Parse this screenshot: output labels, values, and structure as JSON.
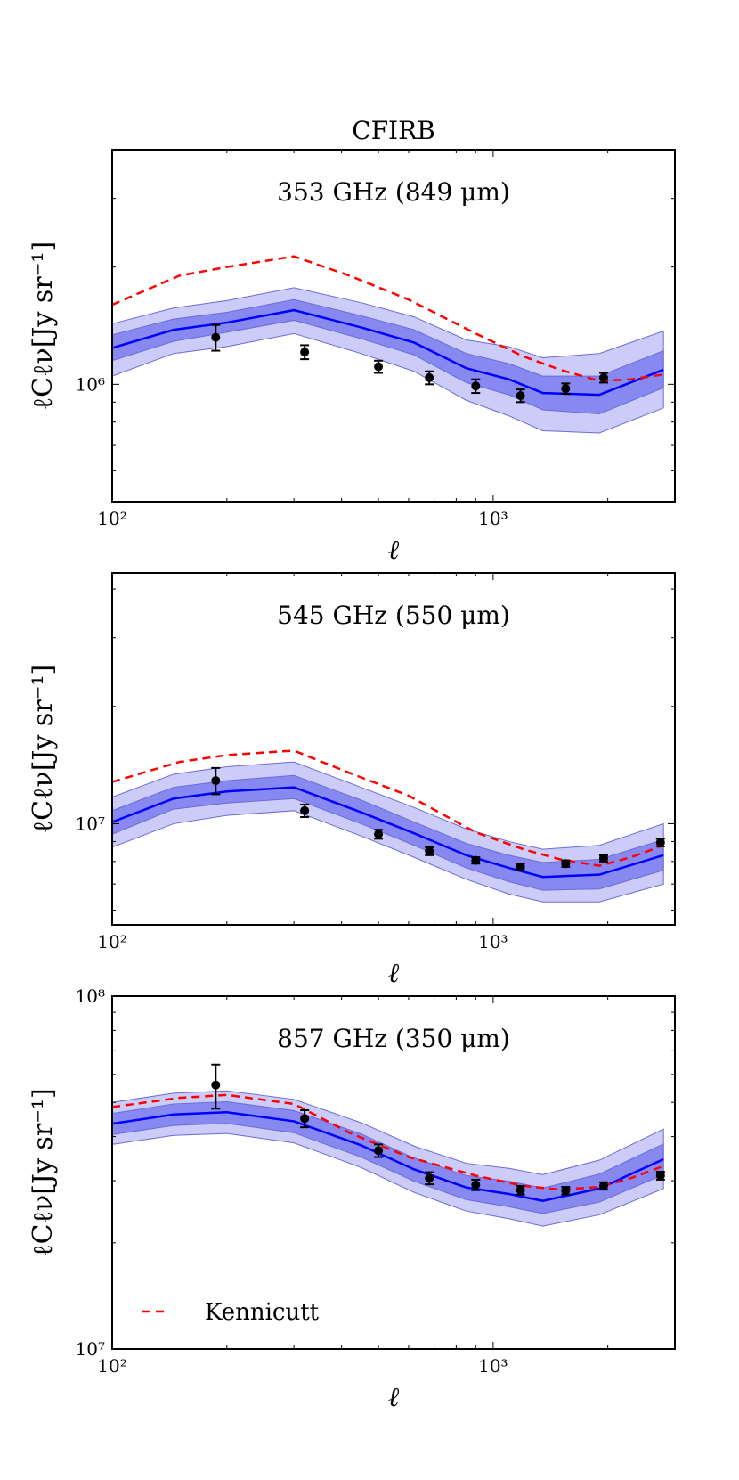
{
  "chart_data": {
    "title": "CFIRB",
    "type": "line",
    "legend": {
      "placement": "bottom-left of bottom panel",
      "entries": [
        {
          "label": "Kennicutt",
          "style": "dashed",
          "color": "#ff0000"
        }
      ]
    },
    "colors": {
      "model_line": "#0000ff",
      "band_inner": "#7b7bf0",
      "band_outer": "#c3c3f7",
      "kennicutt": "#ff0000",
      "data_points": "#000000"
    },
    "xscale": "log",
    "yscale": "log",
    "grid": false,
    "panels": [
      {
        "label": "353 GHz (849 μm)",
        "xlabel": "ℓ",
        "ylabel": "ℓCℓν[Jy sr⁻¹]",
        "xlim": [
          100,
          3000
        ],
        "ylim": [
          500000,
          4000000
        ],
        "xticks": [
          {
            "value": 100,
            "label": "10²"
          },
          {
            "value": 1000,
            "label": "10³"
          }
        ],
        "yticks": [
          {
            "value": 1000000,
            "label": "10⁶"
          }
        ],
        "model": {
          "x": [
            100,
            145,
            200,
            300,
            450,
            620,
            850,
            1100,
            1350,
            1900,
            2800
          ],
          "y": [
            1240000,
            1380000,
            1440000,
            1550000,
            1400000,
            1280000,
            1100000,
            1030000,
            950000,
            940000,
            1090000
          ],
          "inner": [
            [
              1150000,
              1340000
            ],
            [
              1290000,
              1470000
            ],
            [
              1360000,
              1530000
            ],
            [
              1460000,
              1650000
            ],
            [
              1310000,
              1500000
            ],
            [
              1190000,
              1380000
            ],
            [
              1010000,
              1200000
            ],
            [
              940000,
              1130000
            ],
            [
              860000,
              1050000
            ],
            [
              840000,
              1050000
            ],
            [
              980000,
              1220000
            ]
          ],
          "outer": [
            [
              1050000,
              1430000
            ],
            [
              1200000,
              1570000
            ],
            [
              1250000,
              1640000
            ],
            [
              1350000,
              1770000
            ],
            [
              1200000,
              1620000
            ],
            [
              1080000,
              1490000
            ],
            [
              910000,
              1300000
            ],
            [
              830000,
              1250000
            ],
            [
              760000,
              1170000
            ],
            [
              750000,
              1200000
            ],
            [
              870000,
              1370000
            ]
          ]
        },
        "kennicutt": {
          "x": [
            100,
            150,
            200,
            300,
            420,
            600,
            900,
            1200,
            1500,
            1900,
            2300,
            2800
          ],
          "y": [
            1600000,
            1900000,
            2000000,
            2130000,
            1900000,
            1650000,
            1350000,
            1180000,
            1090000,
            1020000,
            1030000,
            1060000
          ]
        },
        "points": [
          {
            "x": 187,
            "y": 1320000,
            "err": 100000
          },
          {
            "x": 320,
            "y": 1210000,
            "err": 50000
          },
          {
            "x": 500,
            "y": 1110000,
            "err": 40000
          },
          {
            "x": 680,
            "y": 1040000,
            "err": 40000
          },
          {
            "x": 900,
            "y": 990000,
            "err": 40000
          },
          {
            "x": 1180,
            "y": 935000,
            "err": 35000
          },
          {
            "x": 1550,
            "y": 975000,
            "err": 30000
          },
          {
            "x": 1950,
            "y": 1040000,
            "err": 30000
          }
        ]
      },
      {
        "label": "545 GHz (550 μm)",
        "xlabel": "ℓ",
        "ylabel": "ℓCℓν[Jy sr⁻¹]",
        "xlim": [
          100,
          3000
        ],
        "ylim": [
          5500000,
          44000000
        ],
        "xticks": [
          {
            "value": 100,
            "label": "10²"
          },
          {
            "value": 1000,
            "label": "10³"
          }
        ],
        "yticks": [
          {
            "value": 10000000,
            "label": "10⁷"
          }
        ],
        "model": {
          "x": [
            100,
            145,
            200,
            300,
            450,
            620,
            850,
            1100,
            1350,
            1900,
            2800
          ],
          "y": [
            10100000,
            11600000,
            12100000,
            12400000,
            10700000,
            9450000,
            8300000,
            7700000,
            7300000,
            7400000,
            8300000
          ],
          "inner": [
            [
              9400000,
              10800000
            ],
            [
              10900000,
              12400000
            ],
            [
              11300000,
              12900000
            ],
            [
              11600000,
              13300000
            ],
            [
              10000000,
              11500000
            ],
            [
              8800000,
              10100000
            ],
            [
              7700000,
              8900000
            ],
            [
              7100000,
              8300000
            ],
            [
              6750000,
              7950000
            ],
            [
              6800000,
              8100000
            ],
            [
              7600000,
              9100000
            ]
          ],
          "outer": [
            [
              8700000,
              11700000
            ],
            [
              10000000,
              13400000
            ],
            [
              10500000,
              14000000
            ],
            [
              10800000,
              14400000
            ],
            [
              9300000,
              12400000
            ],
            [
              8200000,
              11000000
            ],
            [
              7200000,
              9700000
            ],
            [
              6600000,
              9000000
            ],
            [
              6300000,
              8600000
            ],
            [
              6300000,
              8800000
            ],
            [
              7000000,
              10000000
            ]
          ]
        },
        "kennicutt": {
          "x": [
            100,
            150,
            200,
            300,
            420,
            600,
            900,
            1200,
            1500,
            1900,
            2300,
            2800
          ],
          "y": [
            12800000,
            14400000,
            15000000,
            15400000,
            13500000,
            11800000,
            9500000,
            8600000,
            8100000,
            7800000,
            8200000,
            8800000
          ]
        },
        "points": [
          {
            "x": 187,
            "y": 12900000,
            "err": 1000000
          },
          {
            "x": 320,
            "y": 10800000,
            "err": 400000
          },
          {
            "x": 500,
            "y": 9400000,
            "err": 250000
          },
          {
            "x": 680,
            "y": 8500000,
            "err": 200000
          },
          {
            "x": 900,
            "y": 8050000,
            "err": 150000
          },
          {
            "x": 1180,
            "y": 7750000,
            "err": 150000
          },
          {
            "x": 1550,
            "y": 7900000,
            "err": 150000
          },
          {
            "x": 1950,
            "y": 8150000,
            "err": 150000
          },
          {
            "x": 2750,
            "y": 8950000,
            "err": 200000
          }
        ]
      },
      {
        "label": "857 GHz (350 μm)",
        "xlabel": "ℓ",
        "ylabel": "ℓCℓν[Jy sr⁻¹]",
        "xlim": [
          100,
          3000
        ],
        "ylim": [
          10000000,
          100000000
        ],
        "xticks": [
          {
            "value": 100,
            "label": "10²"
          },
          {
            "value": 1000,
            "label": "10³"
          }
        ],
        "yticks": [
          {
            "value": 10000000,
            "label": "10⁷"
          },
          {
            "value": 100000000,
            "label": "10⁸"
          }
        ],
        "model": {
          "x": [
            100,
            145,
            200,
            300,
            450,
            620,
            850,
            1100,
            1350,
            1900,
            2800
          ],
          "y": [
            43500000,
            46200000,
            46900000,
            44200000,
            37800000,
            32300000,
            28700000,
            27500000,
            26300000,
            28500000,
            34500000
          ],
          "inner": [
            [
              40500000,
              46500000
            ],
            [
              43000000,
              49500000
            ],
            [
              43600000,
              50200000
            ],
            [
              41000000,
              47400000
            ],
            [
              35000000,
              40700000
            ],
            [
              29900000,
              34800000
            ],
            [
              26500000,
              31000000
            ],
            [
              25300000,
              29900000
            ],
            [
              24200000,
              28600000
            ],
            [
              26100000,
              31300000
            ],
            [
              31200000,
              38100000
            ]
          ],
          "outer": [
            [
              38000000,
              50000000
            ],
            [
              40300000,
              53100000
            ],
            [
              40800000,
              53900000
            ],
            [
              38400000,
              51000000
            ],
            [
              32700000,
              43800000
            ],
            [
              27800000,
              37600000
            ],
            [
              24600000,
              33600000
            ],
            [
              23400000,
              32500000
            ],
            [
              22300000,
              31200000
            ],
            [
              24000000,
              34300000
            ],
            [
              28500000,
              42000000
            ]
          ]
        },
        "kennicutt": {
          "x": [
            100,
            150,
            200,
            300,
            420,
            600,
            900,
            1200,
            1500,
            1900,
            2300,
            2800
          ],
          "y": [
            48500000,
            51500000,
            52500000,
            49500000,
            41000000,
            35000000,
            31000000,
            29000000,
            28300000,
            28800000,
            30500000,
            33000000
          ]
        },
        "points": [
          {
            "x": 187,
            "y": 56000000,
            "err": 8000000
          },
          {
            "x": 320,
            "y": 45000000,
            "err": 2500000
          },
          {
            "x": 500,
            "y": 36500000,
            "err": 1500000
          },
          {
            "x": 680,
            "y": 30500000,
            "err": 1200000
          },
          {
            "x": 900,
            "y": 29200000,
            "err": 1000000
          },
          {
            "x": 1180,
            "y": 28200000,
            "err": 800000
          },
          {
            "x": 1550,
            "y": 28100000,
            "err": 700000
          },
          {
            "x": 1950,
            "y": 29000000,
            "err": 700000
          },
          {
            "x": 2750,
            "y": 31000000,
            "err": 800000
          }
        ]
      }
    ]
  }
}
